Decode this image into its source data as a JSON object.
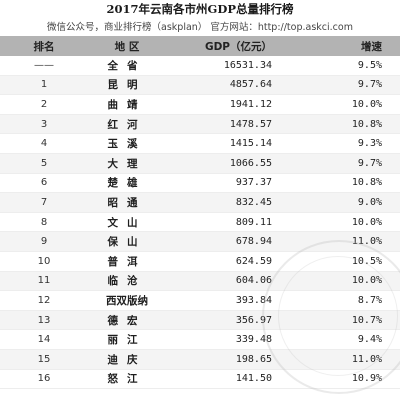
{
  "document": {
    "title": "2017年云南各市州GDP总量排行榜",
    "subtitle": "微信公众号，商业排行榜（askplan）  官方网站：http://top.askci.com"
  },
  "table": {
    "headers": {
      "rank": "排名",
      "region": "地  区",
      "gdp": "GDP（亿元）",
      "growth": "增速"
    },
    "rows": [
      {
        "rank": "——",
        "region": "全省",
        "gdp": "16531.34",
        "growth": "9.5%"
      },
      {
        "rank": "1",
        "region": "昆明",
        "gdp": "4857.64",
        "growth": "9.7%"
      },
      {
        "rank": "2",
        "region": "曲靖",
        "gdp": "1941.12",
        "growth": "10.0%"
      },
      {
        "rank": "3",
        "region": "红河",
        "gdp": "1478.57",
        "growth": "10.8%"
      },
      {
        "rank": "4",
        "region": "玉溪",
        "gdp": "1415.14",
        "growth": "9.3%"
      },
      {
        "rank": "5",
        "region": "大理",
        "gdp": "1066.55",
        "growth": "9.7%"
      },
      {
        "rank": "6",
        "region": "楚雄",
        "gdp": "937.37",
        "growth": "10.8%"
      },
      {
        "rank": "7",
        "region": "昭通",
        "gdp": "832.45",
        "growth": "9.0%"
      },
      {
        "rank": "8",
        "region": "文山",
        "gdp": "809.11",
        "growth": "10.0%"
      },
      {
        "rank": "9",
        "region": "保山",
        "gdp": "678.94",
        "growth": "11.0%"
      },
      {
        "rank": "10",
        "region": "普洱",
        "gdp": "624.59",
        "growth": "10.5%"
      },
      {
        "rank": "11",
        "region": "临沧",
        "gdp": "604.06",
        "growth": "10.0%"
      },
      {
        "rank": "12",
        "region": "西双版纳",
        "gdp": "393.84",
        "growth": "8.7%"
      },
      {
        "rank": "13",
        "region": "德宏",
        "gdp": "356.97",
        "growth": "10.7%"
      },
      {
        "rank": "14",
        "region": "丽江",
        "gdp": "339.48",
        "growth": "9.4%"
      },
      {
        "rank": "15",
        "region": "迪庆",
        "gdp": "198.65",
        "growth": "11.0%"
      },
      {
        "rank": "16",
        "region": "怒江",
        "gdp": "141.50",
        "growth": "10.9%"
      }
    ]
  },
  "watermark": {
    "icon": "circular-logo-watermark",
    "color": "#b4b4b4"
  }
}
